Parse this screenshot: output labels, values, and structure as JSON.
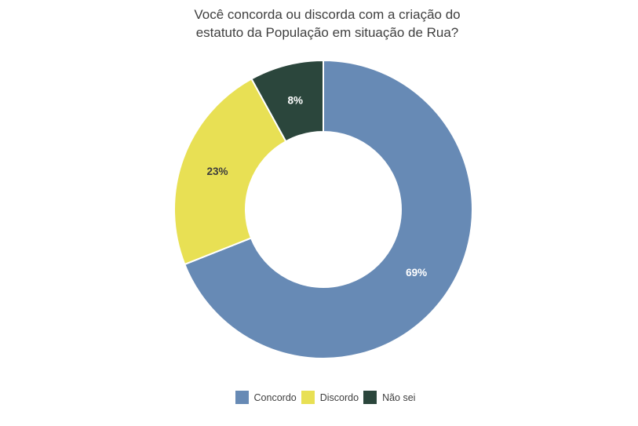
{
  "chart_data": {
    "type": "pie",
    "donut": true,
    "title": "Você concorda ou discorda com a criação do estatuto da População em situação de Rua?",
    "categories": [
      "Concordo",
      "Discordo",
      "Não sei"
    ],
    "values": [
      69,
      23,
      8
    ],
    "unit": "%",
    "slice_labels": [
      "69%",
      "23%",
      "8%"
    ],
    "colors": [
      "#678AB5",
      "#E8E054",
      "#2B463C"
    ],
    "slice_label_colors": [
      "#FFFFFF",
      "#3D3D3D",
      "#FFFFFF"
    ],
    "title_color": "#404040",
    "legend_position": "bottom",
    "start_angle_deg": 0,
    "direction": "clockwise",
    "background": "#FFFFFF"
  }
}
